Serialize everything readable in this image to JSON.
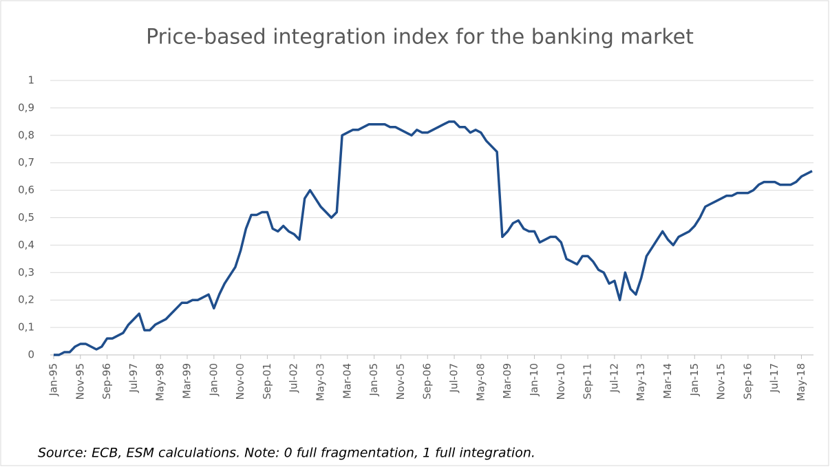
{
  "chart_data": {
    "type": "line",
    "title": "Price-based integration index for the banking market",
    "note": "Source: ECB, ESM calculations. Note: 0 full fragmentation, 1 full integration.",
    "categories": [
      "Jan-95",
      null,
      null,
      null,
      null,
      "Nov-95",
      null,
      null,
      null,
      null,
      "Sep-96",
      null,
      null,
      null,
      null,
      "Jul-97",
      null,
      null,
      null,
      null,
      "May-98",
      null,
      null,
      null,
      null,
      "Mar-99",
      null,
      null,
      null,
      null,
      "Jan-00",
      null,
      null,
      null,
      null,
      "Nov-00",
      null,
      null,
      null,
      null,
      "Sep-01",
      null,
      null,
      null,
      null,
      "Jul-02",
      null,
      null,
      null,
      null,
      "May-03",
      null,
      null,
      null,
      null,
      "Mar-04",
      null,
      null,
      null,
      null,
      "Jan-05",
      null,
      null,
      null,
      null,
      "Nov-05",
      null,
      null,
      null,
      null,
      "Sep-06",
      null,
      null,
      null,
      null,
      "Jul-07",
      null,
      null,
      null,
      null,
      "May-08",
      null,
      null,
      null,
      null,
      "Mar-09",
      null,
      null,
      null,
      null,
      "Jan-10",
      null,
      null,
      null,
      null,
      "Nov-10",
      null,
      null,
      null,
      null,
      "Sep-11",
      null,
      null,
      null,
      null,
      "Jul-12",
      null,
      null,
      null,
      null,
      "May-13",
      null,
      null,
      null,
      null,
      "Mar-14",
      null,
      null,
      null,
      null,
      "Jan-15",
      null,
      null,
      null,
      null,
      "Nov-15",
      null,
      null,
      null,
      null,
      "Sep-16",
      null,
      null,
      null,
      null,
      "Jul-17",
      null,
      null,
      null,
      null,
      "May-18",
      null,
      null
    ],
    "series": [
      {
        "name": "Price-based integration index",
        "color": "#1f4e8c",
        "values": [
          0.0,
          0.0,
          0.01,
          0.01,
          0.03,
          0.04,
          0.04,
          0.03,
          0.02,
          0.03,
          0.06,
          0.06,
          0.07,
          0.08,
          0.11,
          0.13,
          0.15,
          0.09,
          0.09,
          0.11,
          0.12,
          0.13,
          0.15,
          0.17,
          0.19,
          0.19,
          0.2,
          0.2,
          0.21,
          0.22,
          0.17,
          0.22,
          0.26,
          0.29,
          0.32,
          0.38,
          0.46,
          0.51,
          0.51,
          0.52,
          0.52,
          0.46,
          0.45,
          0.47,
          0.45,
          0.44,
          0.42,
          0.57,
          0.6,
          0.57,
          0.54,
          0.52,
          0.5,
          0.52,
          0.8,
          0.81,
          0.82,
          0.82,
          0.83,
          0.84,
          0.84,
          0.84,
          0.84,
          0.83,
          0.83,
          0.82,
          0.81,
          0.8,
          0.82,
          0.81,
          0.81,
          0.82,
          0.83,
          0.84,
          0.85,
          0.85,
          0.83,
          0.83,
          0.81,
          0.82,
          0.81,
          0.78,
          0.76,
          0.74,
          0.43,
          0.45,
          0.48,
          0.49,
          0.46,
          0.45,
          0.45,
          0.41,
          0.42,
          0.43,
          0.43,
          0.41,
          0.35,
          0.34,
          0.33,
          0.36,
          0.36,
          0.34,
          0.31,
          0.3,
          0.26,
          0.27,
          0.2,
          0.3,
          0.24,
          0.22,
          0.28,
          0.36,
          0.39,
          0.42,
          0.45,
          0.42,
          0.4,
          0.43,
          0.44,
          0.45,
          0.47,
          0.5,
          0.54,
          0.55,
          0.56,
          0.57,
          0.58,
          0.58,
          0.59,
          0.59,
          0.59,
          0.6,
          0.62,
          0.63,
          0.63,
          0.63,
          0.62,
          0.62,
          0.62,
          0.63,
          0.65,
          0.66,
          0.67
        ]
      }
    ],
    "ylim": [
      0,
      1
    ],
    "yticks": [
      0,
      {
        "value": 0.1,
        "label": "0,1"
      },
      {
        "value": 0.2,
        "label": "0,2"
      },
      {
        "value": 0.3,
        "label": "0,3"
      },
      {
        "value": 0.4,
        "label": "0,4"
      },
      {
        "value": 0.5,
        "label": "0,5"
      },
      {
        "value": 0.6,
        "label": "0,6"
      },
      {
        "value": 0.7,
        "label": "0,7"
      },
      {
        "value": 0.8,
        "label": "0,8"
      },
      {
        "value": 0.9,
        "label": "0,9"
      },
      1
    ],
    "grid": true
  }
}
